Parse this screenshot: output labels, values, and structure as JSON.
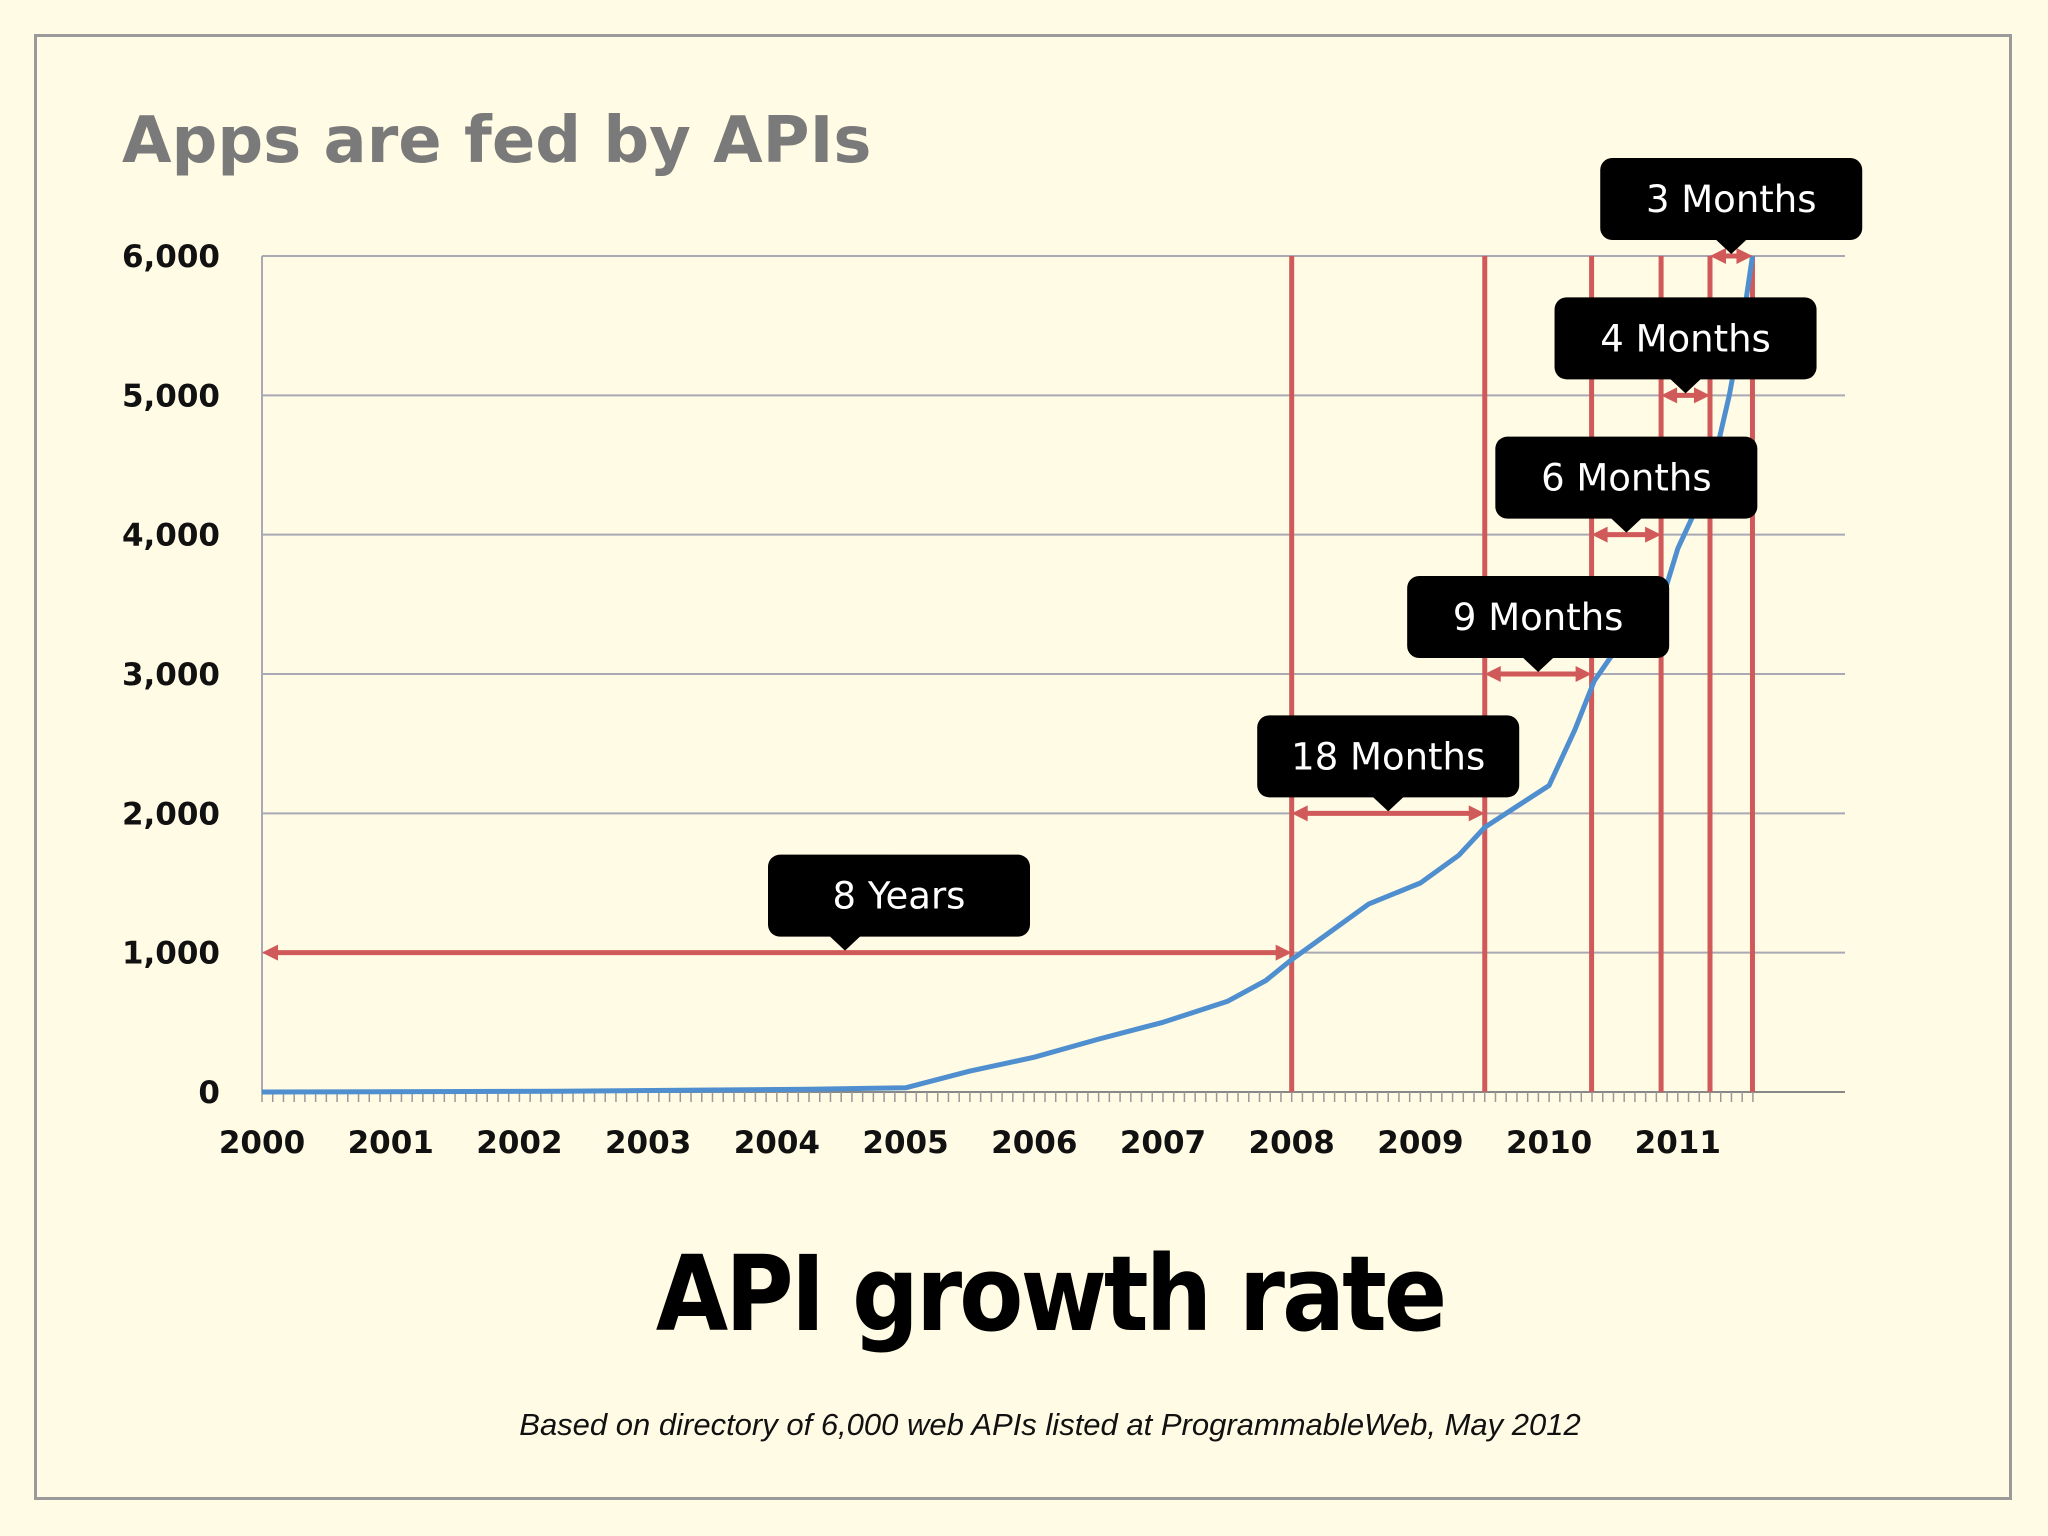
{
  "slide": {
    "title": "Apps are fed by APIs",
    "footnote": "Based on directory of 6,000 web APIs listed at ProgrammableWeb, May 2012"
  },
  "chart_data": {
    "type": "line",
    "title": "API growth rate",
    "xlabel": "",
    "ylabel": "",
    "xlim": [
      2000,
      2011.6
    ],
    "ylim": [
      0,
      6000
    ],
    "x_ticks": [
      "2000",
      "2001",
      "2002",
      "2003",
      "2004",
      "2005",
      "2006",
      "2007",
      "2008",
      "2009",
      "2010",
      "2011"
    ],
    "y_ticks": [
      "0",
      "1,000",
      "2,000",
      "3,000",
      "4,000",
      "5,000",
      "6,000"
    ],
    "grid": "horizontal",
    "colors": {
      "line": "#4f8fcf",
      "marker": "#d05a5a",
      "callout": "#000000",
      "grid": "#a9a9b5"
    },
    "series": [
      {
        "x": [
          2000.0,
          2002.3,
          2004.25,
          2005.0,
          2005.5,
          2006.0,
          2006.5,
          2007.0,
          2007.5,
          2007.8,
          2008.0,
          2008.3,
          2008.6,
          2009.0,
          2009.3,
          2009.5,
          2009.75,
          2010.0,
          2010.2,
          2010.35,
          2010.5,
          2010.8,
          2010.9,
          2011.0,
          2011.1,
          2011.2,
          2011.3,
          2011.4,
          2011.5,
          2011.58
        ],
        "y": [
          0,
          5,
          20,
          30,
          150,
          250,
          380,
          500,
          650,
          800,
          950,
          1150,
          1350,
          1500,
          1700,
          1900,
          2050,
          2200,
          2600,
          2950,
          3150,
          3400,
          3600,
          3900,
          4100,
          4300,
          4600,
          5000,
          5500,
          6000
        ]
      }
    ],
    "milestones": [
      2008.0,
      2009.5,
      2010.33,
      2010.87,
      2011.25,
      2011.58
    ],
    "intervals": [
      {
        "label": "8 Years",
        "from": 2000.0,
        "to": 2008.0,
        "y": 1000
      },
      {
        "label": "18 Months",
        "from": 2008.0,
        "to": 2009.5,
        "y": 2000
      },
      {
        "label": "9 Months",
        "from": 2009.5,
        "to": 2010.33,
        "y": 3000
      },
      {
        "label": "6 Months",
        "from": 2010.33,
        "to": 2010.87,
        "y": 4000
      },
      {
        "label": "4 Months",
        "from": 2010.87,
        "to": 2011.25,
        "y": 5000
      },
      {
        "label": "3 Months",
        "from": 2011.25,
        "to": 2011.58,
        "y": 6000
      }
    ]
  }
}
